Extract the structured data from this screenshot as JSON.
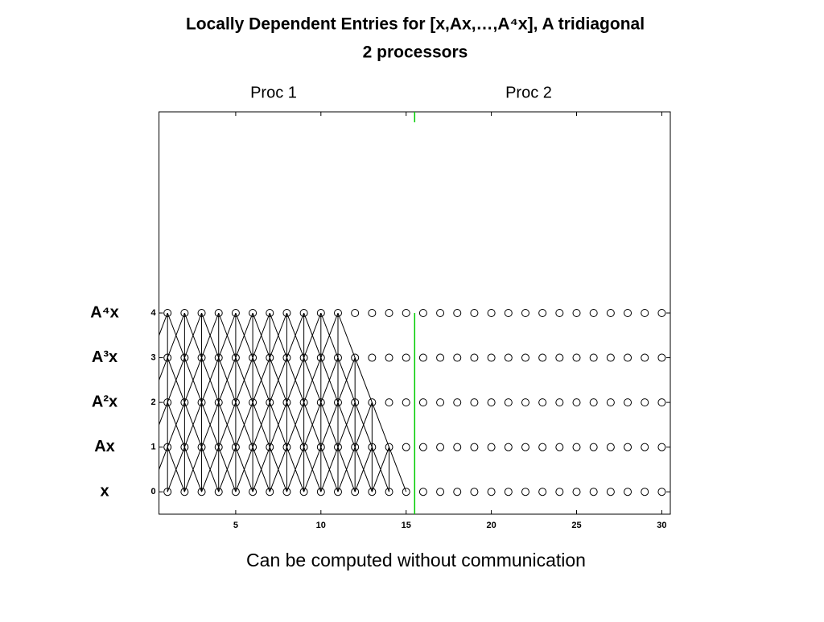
{
  "chart_data": {
    "type": "dependency",
    "title": "Locally Dependent Entries for [x,Ax,…,A⁴x], A tridiagonal",
    "subtitle": "2 processors",
    "processors": [
      "Proc 1",
      "Proc 2"
    ],
    "caption": "Can be computed without communication",
    "x": [
      1,
      2,
      3,
      4,
      5,
      6,
      7,
      8,
      9,
      10,
      11,
      12,
      13,
      14,
      15,
      16,
      17,
      18,
      19,
      20,
      21,
      22,
      23,
      24,
      25,
      26,
      27,
      28,
      29,
      30
    ],
    "rows": [
      {
        "name": "x",
        "level": 0,
        "local_count": 15
      },
      {
        "name": "Ax",
        "level": 1,
        "local_count": 14
      },
      {
        "name": "A²x",
        "level": 2,
        "local_count": 13
      },
      {
        "name": "A³x",
        "level": 3,
        "local_count": 12
      },
      {
        "name": "A⁴x",
        "level": 4,
        "local_count": 11
      }
    ],
    "boundary": 15.5,
    "boundary_color": "#00cc00",
    "color": "#000000",
    "xlim": [
      0.5,
      30.5
    ],
    "ylim": [
      -0.5,
      8.5
    ],
    "xticks": [
      5,
      10,
      15,
      20,
      25,
      30
    ],
    "yticks": [
      0,
      1,
      2,
      3,
      4
    ]
  }
}
